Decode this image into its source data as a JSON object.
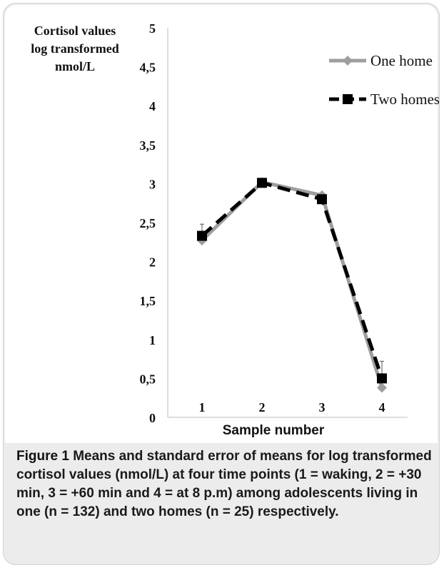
{
  "chart_data": {
    "type": "line",
    "ylabel_lines": [
      "Cortisol values",
      "log transformed",
      "nmol/L"
    ],
    "xlabel": "Sample number",
    "categories": [
      "1",
      "2",
      "3",
      "4"
    ],
    "y_ticks": [
      "0",
      "0,5",
      "1",
      "1,5",
      "2",
      "2,5",
      "3",
      "3,5",
      "4",
      "4,5",
      "5"
    ],
    "ylim": [
      0,
      5
    ],
    "grid": false,
    "legend_position": "top-right",
    "series": [
      {
        "name": "One home",
        "values": [
          2.27,
          3.02,
          2.85,
          0.38
        ],
        "color": "#9e9e9e",
        "marker": "diamond",
        "line": "solid"
      },
      {
        "name": "Two homes",
        "values": [
          2.33,
          3.01,
          2.8,
          0.5
        ],
        "error": [
          0.15,
          0.05,
          0.05,
          0.22
        ],
        "color": "#000000",
        "marker": "square",
        "line": "dashed"
      }
    ]
  },
  "caption": {
    "label": "Figure 1",
    "text": "Means and standard error of means for log transformed cortisol values (nmol/L) at four time points (1 = waking, 2 = +30 min, 3 = +60 min and 4 = at 8 p.m) among adolescents living in one (n = 132) and two homes (n = 25) respectively."
  }
}
